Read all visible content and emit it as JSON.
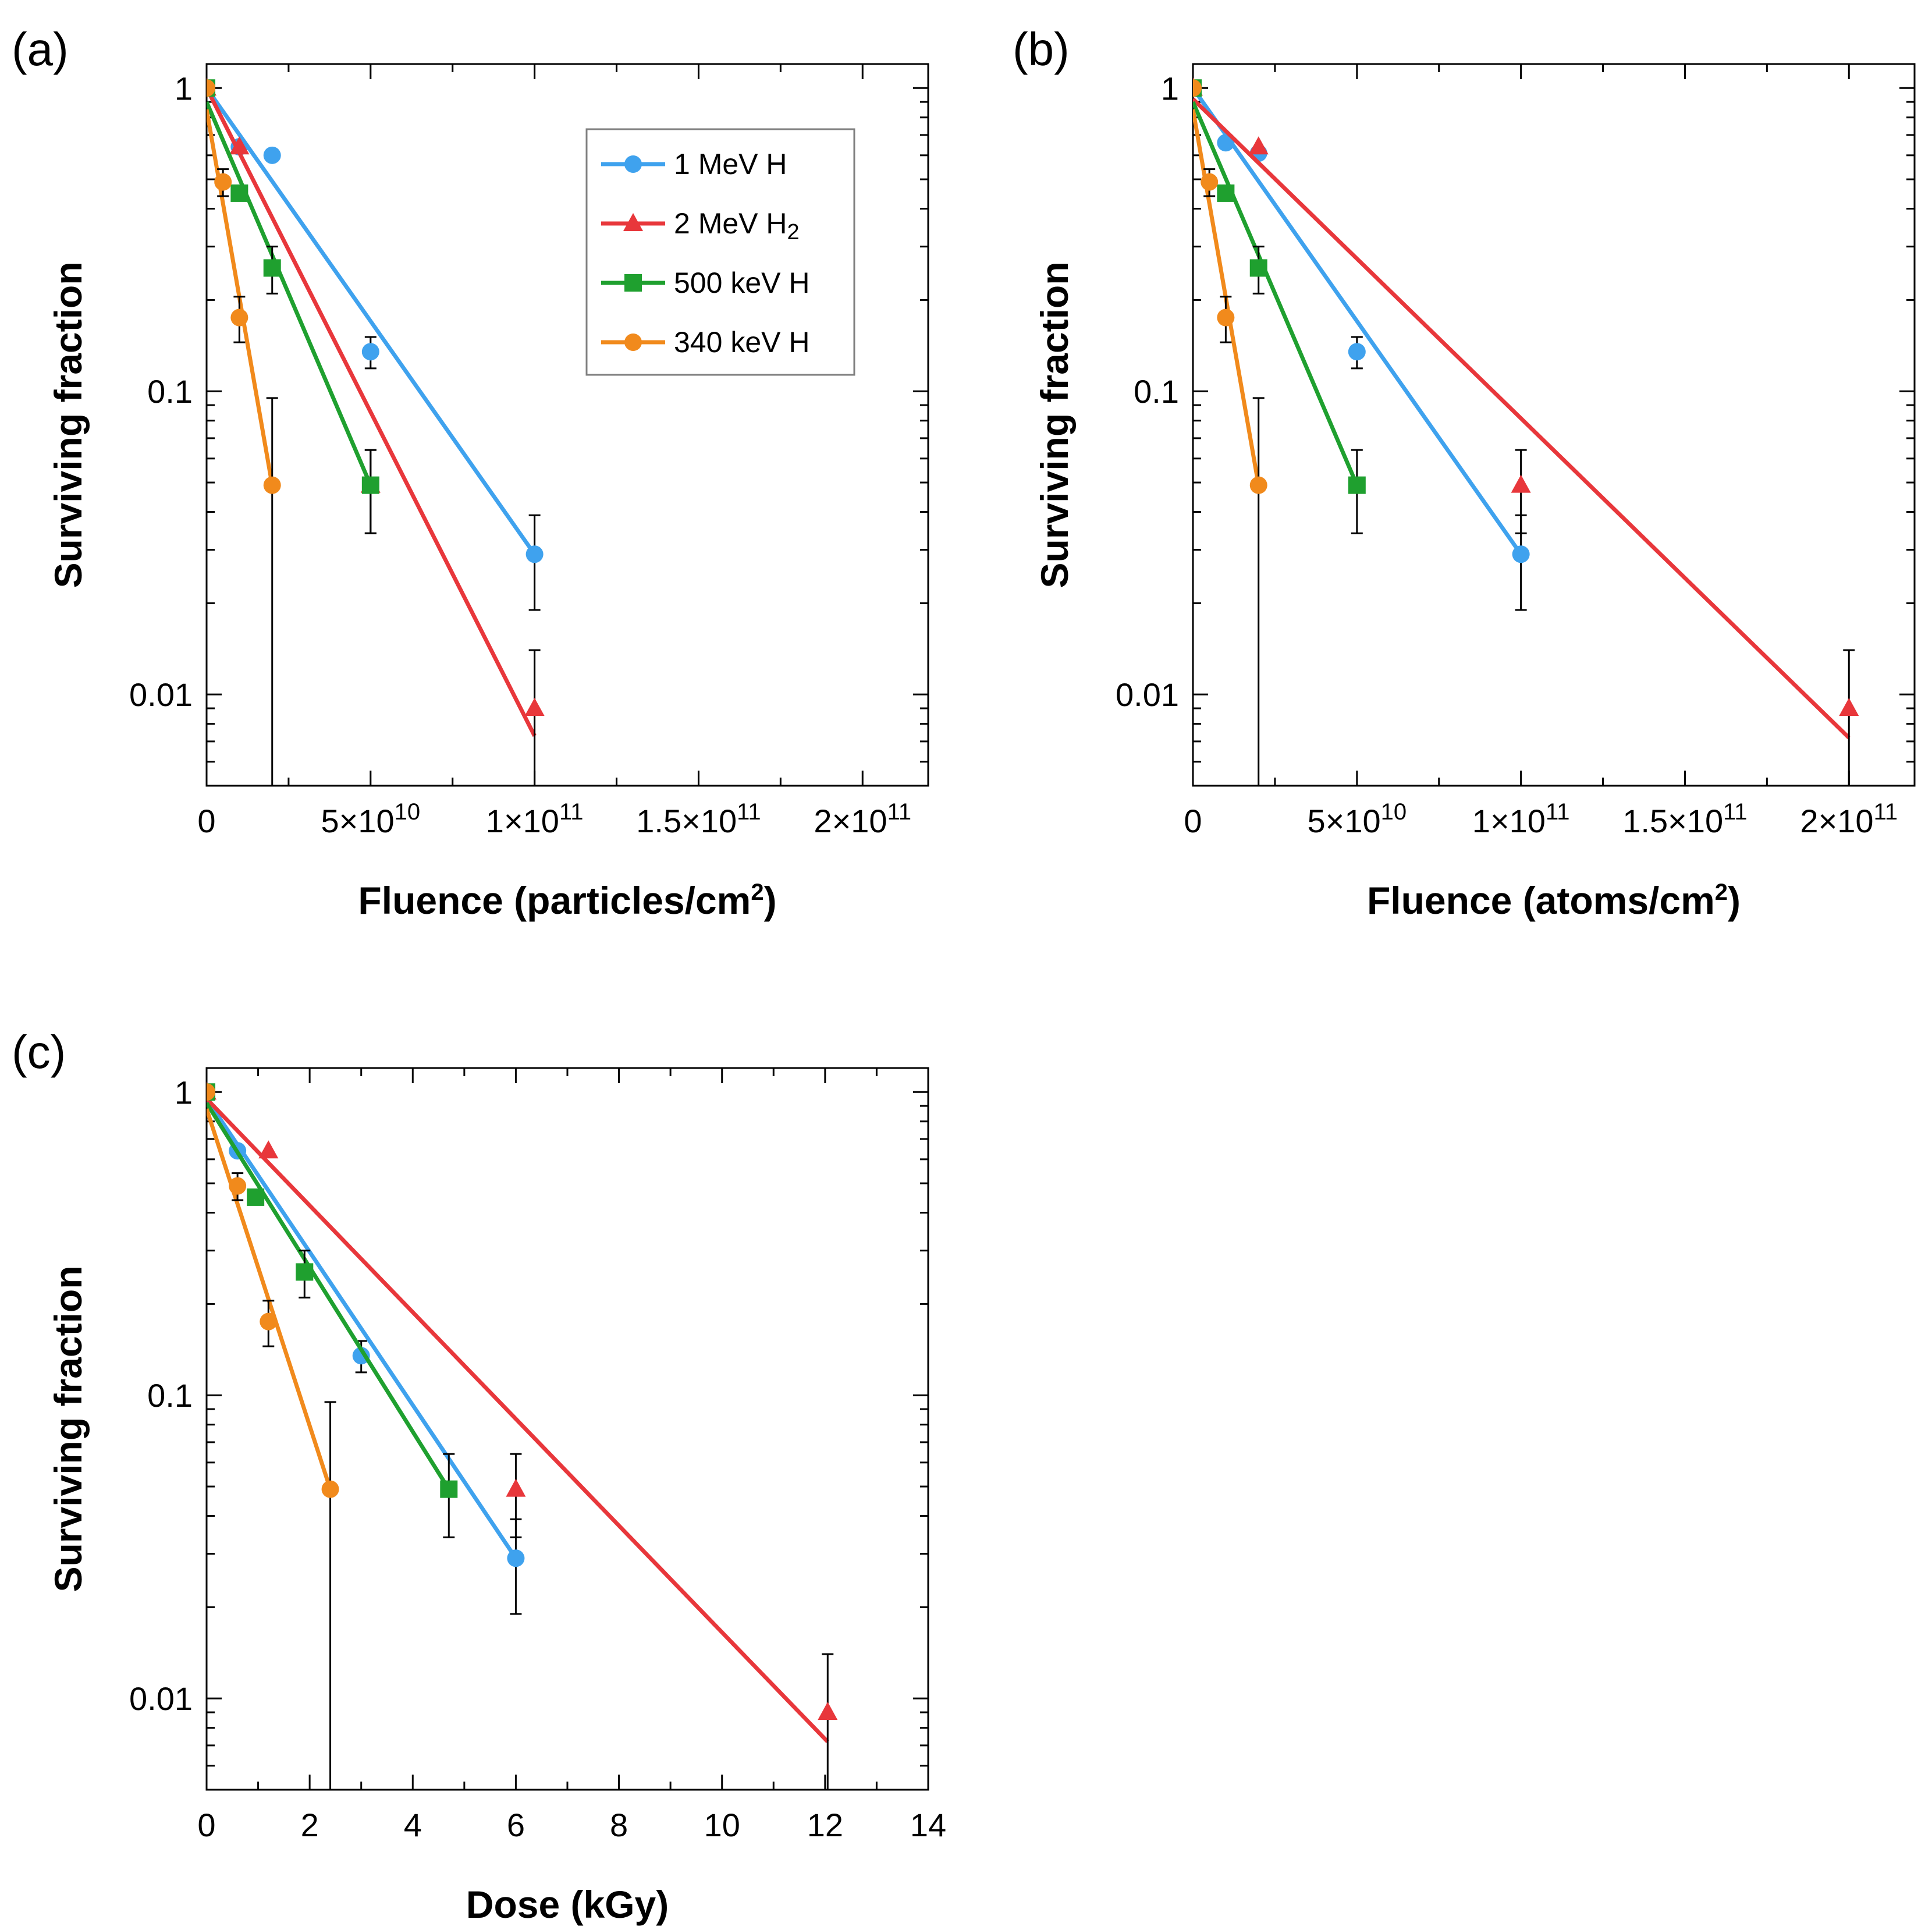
{
  "colors": {
    "1 MeV H": "#3fa2ee",
    "2 MeV H2": "#e8373b",
    "500 keV H": "#1fa02f",
    "340 keV H": "#f18a1c"
  },
  "legend": {
    "entries": [
      {
        "label": "1 MeV H",
        "sub": "",
        "series": "1 MeV H",
        "marker": "circle"
      },
      {
        "label": "2 MeV H",
        "sub": "2",
        "series": "2 MeV H2",
        "marker": "triangle"
      },
      {
        "label": "500 keV H",
        "sub": "",
        "series": "500 keV H",
        "marker": "square"
      },
      {
        "label": "340 keV H",
        "sub": "",
        "series": "340 keV H",
        "marker": "circle"
      }
    ]
  },
  "chart_data": [
    {
      "panel": "(a)",
      "type": "scatter",
      "xlabel": "Fluence (particles/cm",
      "xlabel_sup": "2",
      "xlabel_end": ")",
      "ylabel": "Surviving fraction",
      "xlim": [
        0,
        220000000000
      ],
      "ylim": [
        0.005,
        1.2
      ],
      "yscale": "log",
      "xticks": [
        {
          "v": 0,
          "m": "0",
          "e": ""
        },
        {
          "v": 50000000000,
          "m": "5×10",
          "e": "10"
        },
        {
          "v": 100000000000,
          "m": "1×10",
          "e": "11"
        },
        {
          "v": 150000000000,
          "m": "1.5×10",
          "e": "11"
        },
        {
          "v": 200000000000,
          "m": "2×10",
          "e": "11"
        }
      ],
      "yticks": [
        {
          "v": 1,
          "l": "1"
        },
        {
          "v": 0.1,
          "l": "0.1"
        },
        {
          "v": 0.01,
          "l": "0.01"
        }
      ],
      "legend_position": "top-right",
      "series": [
        {
          "name": "1 MeV H",
          "marker": "circle",
          "points": [
            {
              "x": 0,
              "y": 1.0,
              "err": null
            },
            {
              "x": 10000000000,
              "y": 0.64,
              "err": null
            },
            {
              "x": 20000000000,
              "y": 0.6,
              "err": null
            },
            {
              "x": 50000000000,
              "y": 0.135,
              "err": 0.016
            },
            {
              "x": 100000000000,
              "y": 0.029,
              "err": 0.01
            }
          ],
          "fit": [
            {
              "x": 0,
              "y": 1.0
            },
            {
              "x": 100000000000,
              "y": 0.029
            }
          ]
        },
        {
          "name": "2 MeV H2",
          "marker": "triangle",
          "points": [
            {
              "x": 0,
              "y": 1.0,
              "err": null
            },
            {
              "x": 10000000000,
              "y": 0.64,
              "err": null
            },
            {
              "x": 50000000000,
              "y": 0.049,
              "err": 0.015
            },
            {
              "x": 100000000000,
              "y": 0.009,
              "err": 0.005
            }
          ],
          "fit": [
            {
              "x": 0,
              "y": 1.0
            },
            {
              "x": 100000000000,
              "y": 0.0073
            }
          ]
        },
        {
          "name": "500 keV H",
          "marker": "square",
          "points": [
            {
              "x": 0,
              "y": 1.0,
              "err": null
            },
            {
              "x": 10000000000,
              "y": 0.45,
              "err": null
            },
            {
              "x": 20000000000,
              "y": 0.255,
              "err": 0.045
            },
            {
              "x": 50000000000,
              "y": 0.049,
              "err": 0.015
            }
          ],
          "fit": [
            {
              "x": 0,
              "y": 0.9
            },
            {
              "x": 50000000000,
              "y": 0.049
            }
          ]
        },
        {
          "name": "340 keV H",
          "marker": "circle",
          "points": [
            {
              "x": 0,
              "y": 1.0,
              "err": null
            },
            {
              "x": 5000000000,
              "y": 0.49,
              "err": 0.05
            },
            {
              "x": 10000000000,
              "y": 0.175,
              "err": 0.03
            },
            {
              "x": 20000000000,
              "y": 0.049,
              "err": 0.046
            }
          ],
          "fit": [
            {
              "x": 0,
              "y": 0.85
            },
            {
              "x": 20000000000,
              "y": 0.049
            }
          ]
        }
      ]
    },
    {
      "panel": "(b)",
      "type": "scatter",
      "xlabel": "Fluence (atoms/cm",
      "xlabel_sup": "2",
      "xlabel_end": ")",
      "ylabel": "Surviving fraction",
      "xlim": [
        0,
        220000000000
      ],
      "ylim": [
        0.005,
        1.2
      ],
      "yscale": "log",
      "xticks": [
        {
          "v": 0,
          "m": "0",
          "e": ""
        },
        {
          "v": 50000000000,
          "m": "5×10",
          "e": "10"
        },
        {
          "v": 100000000000,
          "m": "1×10",
          "e": "11"
        },
        {
          "v": 150000000000,
          "m": "1.5×10",
          "e": "11"
        },
        {
          "v": 200000000000,
          "m": "2×10",
          "e": "11"
        }
      ],
      "yticks": [
        {
          "v": 1,
          "l": "1"
        },
        {
          "v": 0.1,
          "l": "0.1"
        },
        {
          "v": 0.01,
          "l": "0.01"
        }
      ],
      "series": [
        {
          "name": "1 MeV H",
          "marker": "circle",
          "points": [
            {
              "x": 0,
              "y": 1.0,
              "err": null
            },
            {
              "x": 10000000000,
              "y": 0.66,
              "err": null
            },
            {
              "x": 20000000000,
              "y": 0.61,
              "err": null
            },
            {
              "x": 50000000000,
              "y": 0.135,
              "err": 0.016
            },
            {
              "x": 100000000000,
              "y": 0.029,
              "err": 0.01
            }
          ],
          "fit": [
            {
              "x": 0,
              "y": 1.0
            },
            {
              "x": 100000000000,
              "y": 0.029
            }
          ]
        },
        {
          "name": "2 MeV H2",
          "marker": "triangle",
          "points": [
            {
              "x": 0,
              "y": 1.0,
              "err": null
            },
            {
              "x": 20000000000,
              "y": 0.64,
              "err": null
            },
            {
              "x": 100000000000,
              "y": 0.049,
              "err": 0.015
            },
            {
              "x": 200000000000,
              "y": 0.009,
              "err": 0.005
            }
          ],
          "fit": [
            {
              "x": 0,
              "y": 0.92
            },
            {
              "x": 200000000000,
              "y": 0.0072
            }
          ]
        },
        {
          "name": "500 keV H",
          "marker": "square",
          "points": [
            {
              "x": 0,
              "y": 1.0,
              "err": null
            },
            {
              "x": 10000000000,
              "y": 0.45,
              "err": null
            },
            {
              "x": 20000000000,
              "y": 0.255,
              "err": 0.045
            },
            {
              "x": 50000000000,
              "y": 0.049,
              "err": 0.015
            }
          ],
          "fit": [
            {
              "x": 0,
              "y": 0.9
            },
            {
              "x": 50000000000,
              "y": 0.049
            }
          ]
        },
        {
          "name": "340 keV H",
          "marker": "circle",
          "points": [
            {
              "x": 0,
              "y": 1.0,
              "err": null
            },
            {
              "x": 5000000000,
              "y": 0.49,
              "err": 0.05
            },
            {
              "x": 10000000000,
              "y": 0.175,
              "err": 0.03
            },
            {
              "x": 20000000000,
              "y": 0.049,
              "err": 0.046
            }
          ],
          "fit": [
            {
              "x": 0,
              "y": 0.85
            },
            {
              "x": 20000000000,
              "y": 0.049
            }
          ]
        }
      ]
    },
    {
      "panel": "(c)",
      "type": "scatter",
      "xlabel": "Dose (kGy)",
      "xlabel_sup": "",
      "xlabel_end": "",
      "ylabel": "Surviving fraction",
      "xlim": [
        0,
        14
      ],
      "ylim": [
        0.005,
        1.2
      ],
      "yscale": "log",
      "xticks": [
        {
          "v": 0,
          "m": "0",
          "e": ""
        },
        {
          "v": 2,
          "m": "2",
          "e": ""
        },
        {
          "v": 4,
          "m": "4",
          "e": ""
        },
        {
          "v": 6,
          "m": "6",
          "e": ""
        },
        {
          "v": 8,
          "m": "8",
          "e": ""
        },
        {
          "v": 10,
          "m": "10",
          "e": ""
        },
        {
          "v": 12,
          "m": "12",
          "e": ""
        },
        {
          "v": 14,
          "m": "14",
          "e": ""
        }
      ],
      "yticks": [
        {
          "v": 1,
          "l": "1"
        },
        {
          "v": 0.1,
          "l": "0.1"
        },
        {
          "v": 0.01,
          "l": "0.01"
        }
      ],
      "series": [
        {
          "name": "1 MeV H",
          "marker": "circle",
          "points": [
            {
              "x": 0,
              "y": 1.0,
              "err": null
            },
            {
              "x": 0.6,
              "y": 0.64,
              "err": null
            },
            {
              "x": 3.0,
              "y": 0.135,
              "err": 0.016
            },
            {
              "x": 6.0,
              "y": 0.029,
              "err": 0.01
            }
          ],
          "fit": [
            {
              "x": 0,
              "y": 0.95
            },
            {
              "x": 6.0,
              "y": 0.029
            }
          ]
        },
        {
          "name": "2 MeV H2",
          "marker": "triangle",
          "points": [
            {
              "x": 0,
              "y": 1.0,
              "err": null
            },
            {
              "x": 1.2,
              "y": 0.64,
              "err": null
            },
            {
              "x": 6.0,
              "y": 0.049,
              "err": 0.015
            },
            {
              "x": 12.05,
              "y": 0.009,
              "err": 0.005
            }
          ],
          "fit": [
            {
              "x": 0,
              "y": 0.95
            },
            {
              "x": 12.05,
              "y": 0.0072
            }
          ]
        },
        {
          "name": "500 keV H",
          "marker": "square",
          "points": [
            {
              "x": 0,
              "y": 1.0,
              "err": null
            },
            {
              "x": 0.95,
              "y": 0.45,
              "err": null
            },
            {
              "x": 1.9,
              "y": 0.255,
              "err": 0.045
            },
            {
              "x": 4.7,
              "y": 0.049,
              "err": 0.015
            }
          ],
          "fit": [
            {
              "x": 0,
              "y": 0.92
            },
            {
              "x": 4.7,
              "y": 0.049
            }
          ]
        },
        {
          "name": "340 keV H",
          "marker": "circle",
          "points": [
            {
              "x": 0,
              "y": 1.0,
              "err": null
            },
            {
              "x": 0.6,
              "y": 0.49,
              "err": 0.05
            },
            {
              "x": 1.2,
              "y": 0.175,
              "err": 0.03
            },
            {
              "x": 2.4,
              "y": 0.049,
              "err": 0.046
            }
          ],
          "fit": [
            {
              "x": 0,
              "y": 0.88
            },
            {
              "x": 2.4,
              "y": 0.049
            }
          ]
        }
      ]
    }
  ]
}
